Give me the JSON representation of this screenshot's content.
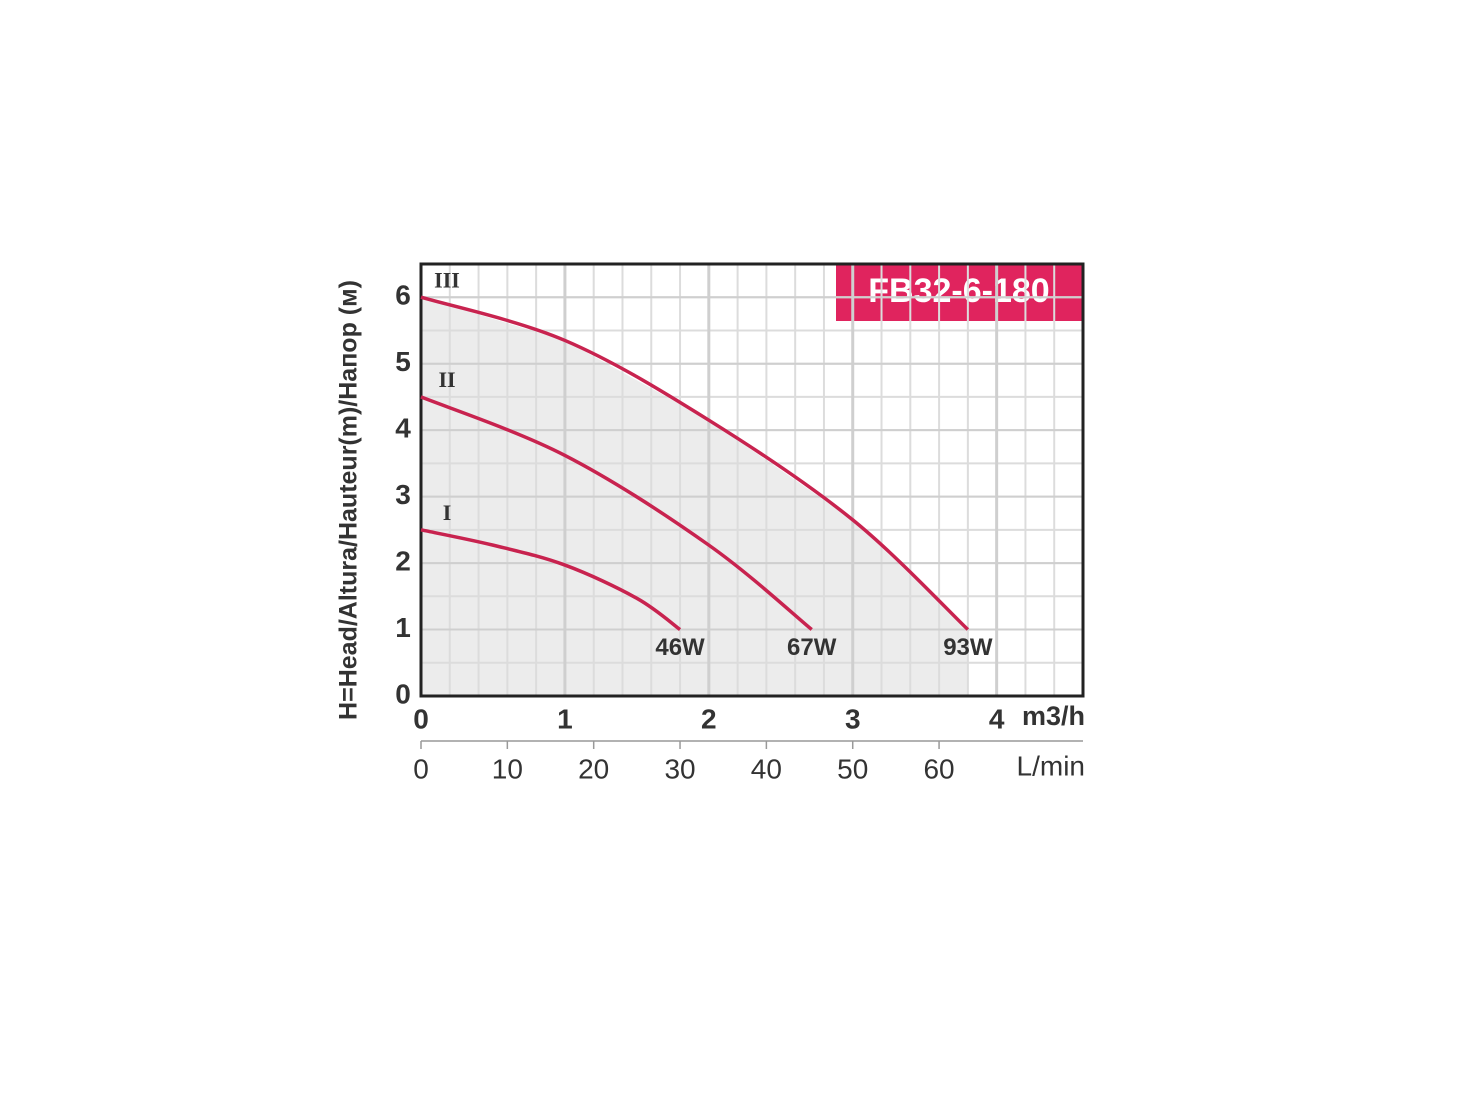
{
  "chart_data": {
    "type": "line",
    "title": "FB32-6-180",
    "ylabel": "H=Head/Altura/Hauteur(m)/Напор (м)",
    "xlabel": "m3/h",
    "x2label": "L/min",
    "xlim": [
      0,
      4.6
    ],
    "xticks": [
      0,
      1,
      2,
      3,
      4
    ],
    "x2lim": [
      0,
      76.67
    ],
    "x2ticks": [
      0,
      10,
      20,
      30,
      40,
      50,
      60
    ],
    "ylim": [
      0,
      6.5
    ],
    "yticks": [
      0,
      1,
      2,
      3,
      4,
      5,
      6
    ],
    "grid": true,
    "series": [
      {
        "name": "III",
        "label": "93W",
        "color": "#c8234f",
        "x": [
          0,
          1,
          2,
          3,
          3.8
        ],
        "values": [
          6,
          5.35,
          4.15,
          2.65,
          1
        ]
      },
      {
        "name": "II",
        "label": "67W",
        "color": "#c8234f",
        "x": [
          0,
          1,
          2,
          2.715
        ],
        "values": [
          4.5,
          3.62,
          2.27,
          1
        ]
      },
      {
        "name": "I",
        "label": "46W",
        "color": "#c8234f",
        "x": [
          0,
          0.5,
          1,
          1.5,
          1.8
        ],
        "values": [
          2.5,
          2.27,
          1.97,
          1.47,
          1
        ]
      }
    ]
  }
}
